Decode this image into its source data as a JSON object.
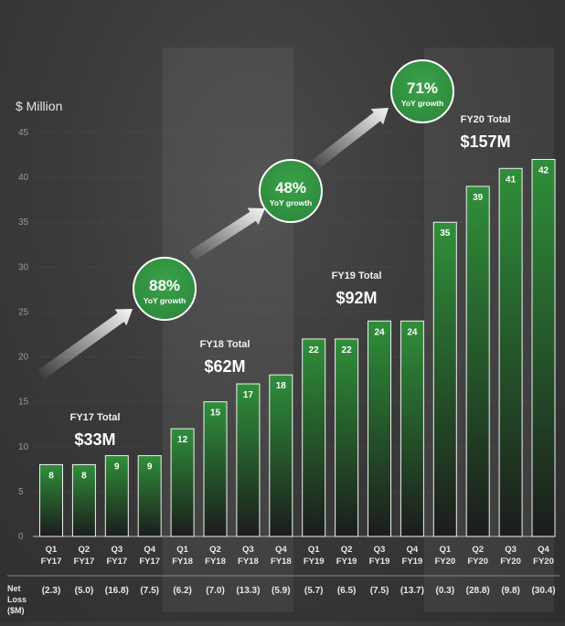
{
  "chart_data": {
    "type": "bar",
    "ylabel": "$ Million",
    "ylim": [
      0,
      45
    ],
    "yticks": [
      0,
      5,
      10,
      15,
      20,
      25,
      30,
      35,
      40,
      45
    ],
    "grid": true,
    "bars": [
      {
        "q": "Q1",
        "fy": "FY17",
        "value": 8,
        "label": "8",
        "net": "(2.3)"
      },
      {
        "q": "Q2",
        "fy": "FY17",
        "value": 8,
        "label": "8",
        "net": "(5.0)"
      },
      {
        "q": "Q3",
        "fy": "FY17",
        "value": 9,
        "label": "9",
        "net": "(16.8)"
      },
      {
        "q": "Q4",
        "fy": "FY17",
        "value": 9,
        "label": "9",
        "net": "(7.5)"
      },
      {
        "q": "Q1",
        "fy": "FY18",
        "value": 12,
        "label": "12",
        "net": "(6.2)"
      },
      {
        "q": "Q2",
        "fy": "FY18",
        "value": 15,
        "label": "15",
        "net": "(7.0)"
      },
      {
        "q": "Q3",
        "fy": "FY18",
        "value": 17,
        "label": "17",
        "net": "(13.3)"
      },
      {
        "q": "Q4",
        "fy": "FY18",
        "value": 18,
        "label": "18",
        "net": "(5.9)"
      },
      {
        "q": "Q1",
        "fy": "FY19",
        "value": 22,
        "label": "22",
        "net": "(5.7)"
      },
      {
        "q": "Q2",
        "fy": "FY19",
        "value": 22,
        "label": "22",
        "net": "(6.5)"
      },
      {
        "q": "Q3",
        "fy": "FY19",
        "value": 24,
        "label": "24",
        "net": "(7.5)"
      },
      {
        "q": "Q4",
        "fy": "FY19",
        "value": 24,
        "label": "24",
        "net": "(13.7)"
      },
      {
        "q": "Q1",
        "fy": "FY20",
        "value": 35,
        "label": "35",
        "net": "(0.3)"
      },
      {
        "q": "Q2",
        "fy": "FY20",
        "value": 39,
        "label": "39",
        "net": "(28.8)"
      },
      {
        "q": "Q3",
        "fy": "FY20",
        "value": 41,
        "label": "41",
        "net": "(9.8)"
      },
      {
        "q": "Q4",
        "fy": "FY20",
        "value": 42,
        "label": "42",
        "net": "(30.4)"
      }
    ],
    "net_loss_label": [
      "Net",
      "Loss",
      "($M)"
    ],
    "totals": [
      {
        "label": "FY17 Total",
        "value": "$33M"
      },
      {
        "label": "FY18 Total",
        "value": "$62M"
      },
      {
        "label": "FY19 Total",
        "value": "$92M"
      },
      {
        "label": "FY20 Total",
        "value": "$157M"
      }
    ],
    "growth": [
      {
        "pct": "88%",
        "sub": "YoY growth"
      },
      {
        "pct": "48%",
        "sub": "YoY growth"
      },
      {
        "pct": "71%",
        "sub": "YoY growth"
      }
    ],
    "colors": {
      "bar_top": "#2f8f3a",
      "bar_bottom": "#1c1c1c",
      "bar_border": "#f2f2f2",
      "circle": "#2e8b3c",
      "circle_border": "#ffffff"
    }
  }
}
